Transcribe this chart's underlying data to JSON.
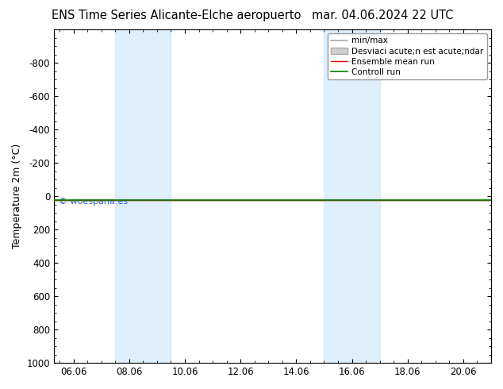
{
  "title_left": "ENS Time Series Alicante-Elche aeropuerto",
  "title_right": "mar. 04.06.2024 22 UTC",
  "ylabel": "Temperature 2m (°C)",
  "ylim_top": -1000,
  "ylim_bottom": 1000,
  "xtick_labels": [
    "06.06",
    "08.06",
    "10.06",
    "12.06",
    "14.06",
    "16.06",
    "18.06",
    "20.06"
  ],
  "xtick_positions": [
    0,
    2,
    4,
    6,
    8,
    10,
    12,
    14
  ],
  "xlim": [
    -0.7,
    15.0
  ],
  "shaded_bands": [
    {
      "x_start": 1.5,
      "x_end": 3.5
    },
    {
      "x_start": 9.0,
      "x_end": 11.0
    }
  ],
  "shade_color": "#d0e8f8",
  "shade_alpha": 0.7,
  "line_y": 25,
  "yticks": [
    -800,
    -600,
    -400,
    -200,
    0,
    200,
    400,
    600,
    800,
    1000
  ],
  "legend_minmax_color": "#aaaaaa",
  "legend_std_color": "#d0d0d0",
  "legend_mean_color": "red",
  "legend_control_color": "green",
  "legend_label_minmax": "min/max",
  "legend_label_std": "Desviaci acute;n est acute;ndar",
  "legend_label_mean": "Ensemble mean run",
  "legend_label_control": "Controll run",
  "watermark": "© woespana.es",
  "watermark_color": "#3366bb",
  "bg_color": "white",
  "title_fontsize": 10.5,
  "ylabel_fontsize": 9,
  "tick_fontsize": 8.5,
  "legend_fontsize": 7.5
}
